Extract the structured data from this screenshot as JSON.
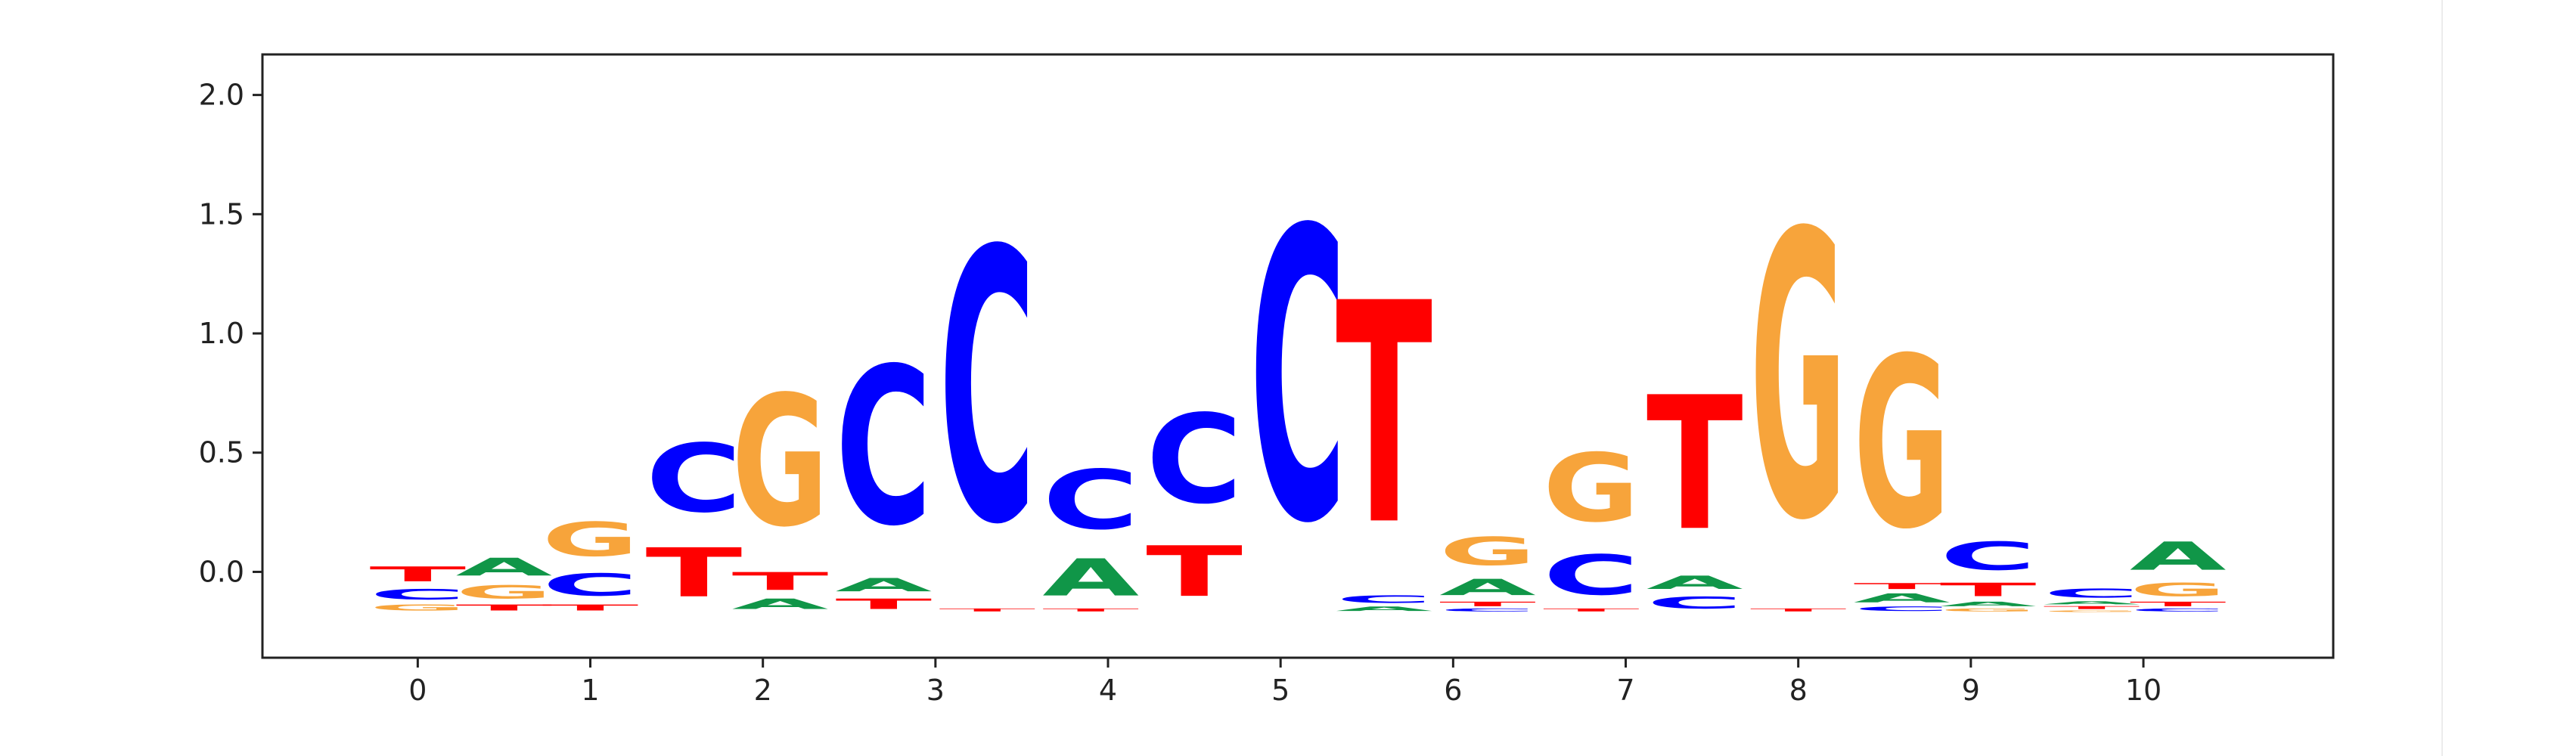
{
  "chart_data": {
    "type": "sequence-logo",
    "title": "",
    "xlabel": "",
    "ylabel": "",
    "x_ticks": [
      "0",
      "1",
      "2",
      "3",
      "4",
      "5",
      "6",
      "7",
      "8",
      "9",
      "10"
    ],
    "y_ticks": [
      "0.0",
      "0.5",
      "1.0",
      "1.5",
      "2.0"
    ],
    "xlim": [
      -0.9,
      11.1
    ],
    "ylim": [
      -0.36,
      2.17
    ],
    "color_map": {
      "A": "#109648",
      "C": "#0000ff",
      "G": "#f7a43b",
      "T": "#ff0000"
    },
    "columns": [
      {
        "x": 0.0,
        "stack": [
          {
            "letter": "G",
            "y0": -0.17,
            "y1": -0.13
          },
          {
            "letter": "C",
            "y0": -0.13,
            "y1": -0.06
          },
          {
            "letter": "T",
            "y0": -0.06,
            "y1": 0.04
          }
        ]
      },
      {
        "x": 0.5,
        "stack": [
          {
            "letter": "T",
            "y0": -0.17,
            "y1": -0.13
          },
          {
            "letter": "G",
            "y0": -0.13,
            "y1": -0.04
          },
          {
            "letter": "A",
            "y0": -0.04,
            "y1": 0.08
          }
        ]
      },
      {
        "x": 1.0,
        "stack": [
          {
            "letter": "T",
            "y0": -0.17,
            "y1": -0.13
          },
          {
            "letter": "C",
            "y0": -0.13,
            "y1": 0.02
          },
          {
            "letter": "G",
            "y0": 0.02,
            "y1": 0.25
          }
        ]
      },
      {
        "x": 1.6,
        "stack": [
          {
            "letter": "T",
            "y0": -0.17,
            "y1": 0.16
          },
          {
            "letter": "C",
            "y0": 0.16,
            "y1": 0.62
          }
        ]
      },
      {
        "x": 2.1,
        "stack": [
          {
            "letter": "A",
            "y0": -0.17,
            "y1": -0.1
          },
          {
            "letter": "T",
            "y0": -0.1,
            "y1": 0.02
          },
          {
            "letter": "G",
            "y0": 0.02,
            "y1": 0.9
          }
        ]
      },
      {
        "x": 2.7,
        "stack": [
          {
            "letter": "T",
            "y0": -0.17,
            "y1": -0.1
          },
          {
            "letter": "A",
            "y0": -0.1,
            "y1": -0.01
          },
          {
            "letter": "C",
            "y0": -0.01,
            "y1": 1.05
          }
        ]
      },
      {
        "x": 3.3,
        "stack": [
          {
            "letter": "T",
            "y0": -0.17,
            "y1": -0.15
          },
          {
            "letter": "C",
            "y0": -0.15,
            "y1": 1.68
          }
        ]
      },
      {
        "x": 3.9,
        "stack": [
          {
            "letter": "T",
            "y0": -0.17,
            "y1": -0.15
          },
          {
            "letter": "A",
            "y0": -0.15,
            "y1": 0.1
          },
          {
            "letter": "C",
            "y0": 0.1,
            "y1": 0.5
          }
        ]
      },
      {
        "x": 4.5,
        "stack": [
          {
            "letter": "T",
            "y0": -0.17,
            "y1": 0.17
          },
          {
            "letter": "C",
            "y0": 0.17,
            "y1": 0.77
          }
        ]
      },
      {
        "x": 5.1,
        "stack": [
          {
            "letter": "C",
            "y0": -0.17,
            "y1": 1.79
          }
        ]
      },
      {
        "x": 5.6,
        "stack": [
          {
            "letter": "A",
            "y0": -0.17,
            "y1": -0.14
          },
          {
            "letter": "C",
            "y0": -0.14,
            "y1": -0.09
          },
          {
            "letter": "T",
            "y0": -0.09,
            "y1": 1.4
          }
        ]
      },
      {
        "x": 6.2,
        "stack": [
          {
            "letter": "C",
            "y0": -0.17,
            "y1": -0.15
          },
          {
            "letter": "T",
            "y0": -0.15,
            "y1": -0.12
          },
          {
            "letter": "A",
            "y0": -0.12,
            "y1": -0.01
          },
          {
            "letter": "G",
            "y0": -0.01,
            "y1": 0.18
          }
        ]
      },
      {
        "x": 6.8,
        "stack": [
          {
            "letter": "T",
            "y0": -0.17,
            "y1": -0.15
          },
          {
            "letter": "C",
            "y0": -0.15,
            "y1": 0.12
          },
          {
            "letter": "G",
            "y0": 0.12,
            "y1": 0.58
          }
        ]
      },
      {
        "x": 7.4,
        "stack": [
          {
            "letter": "C",
            "y0": -0.17,
            "y1": -0.09
          },
          {
            "letter": "A",
            "y0": -0.09,
            "y1": 0.0
          },
          {
            "letter": "T",
            "y0": 0.0,
            "y1": 0.9
          }
        ]
      },
      {
        "x": 8.0,
        "stack": [
          {
            "letter": "T",
            "y0": -0.17,
            "y1": -0.15
          },
          {
            "letter": "G",
            "y0": -0.15,
            "y1": 1.77
          }
        ]
      },
      {
        "x": 8.6,
        "stack": [
          {
            "letter": "C",
            "y0": -0.17,
            "y1": -0.14
          },
          {
            "letter": "A",
            "y0": -0.14,
            "y1": -0.08
          },
          {
            "letter": "T",
            "y0": -0.08,
            "y1": -0.04
          },
          {
            "letter": "G",
            "y0": -0.04,
            "y1": 1.11
          }
        ]
      },
      {
        "x": 9.1,
        "stack": [
          {
            "letter": "G",
            "y0": -0.17,
            "y1": -0.15
          },
          {
            "letter": "A",
            "y0": -0.15,
            "y1": -0.12
          },
          {
            "letter": "T",
            "y0": -0.12,
            "y1": -0.03
          },
          {
            "letter": "C",
            "y0": -0.03,
            "y1": 0.16
          }
        ]
      },
      {
        "x": 9.7,
        "stack": [
          {
            "letter": "G",
            "y0": -0.17,
            "y1": -0.16
          },
          {
            "letter": "T",
            "y0": -0.16,
            "y1": -0.14
          },
          {
            "letter": "A",
            "y0": -0.14,
            "y1": -0.12
          },
          {
            "letter": "C",
            "y0": -0.12,
            "y1": -0.06
          }
        ]
      },
      {
        "x": 10.2,
        "stack": [
          {
            "letter": "C",
            "y0": -0.17,
            "y1": -0.15
          },
          {
            "letter": "T",
            "y0": -0.15,
            "y1": -0.12
          },
          {
            "letter": "G",
            "y0": -0.12,
            "y1": -0.03
          },
          {
            "letter": "A",
            "y0": -0.03,
            "y1": 0.16
          }
        ]
      }
    ]
  }
}
